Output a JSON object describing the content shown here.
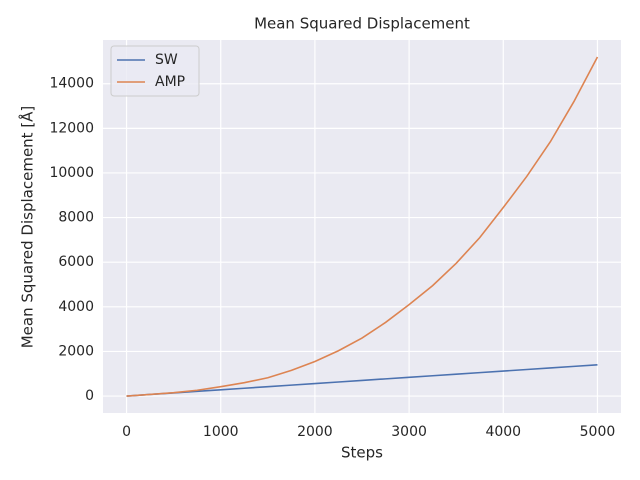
{
  "chart_data": {
    "type": "line",
    "title": "Mean Squared Displacement",
    "xlabel": "Steps",
    "ylabel": "Mean Squared Displacement [Å]",
    "x": [
      0,
      250,
      500,
      750,
      1000,
      1250,
      1500,
      1750,
      2000,
      2250,
      2500,
      2750,
      3000,
      3250,
      3500,
      3750,
      4000,
      4250,
      4500,
      4750,
      5000
    ],
    "series": [
      {
        "name": "SW",
        "color": "#4c72b0",
        "values": [
          0,
          70,
          140,
          210,
          280,
          350,
          420,
          490,
          560,
          630,
          700,
          770,
          840,
          910,
          980,
          1050,
          1120,
          1190,
          1260,
          1330,
          1400
        ]
      },
      {
        "name": "AMP",
        "color": "#dd8452",
        "values": [
          0,
          70,
          150,
          260,
          420,
          600,
          820,
          1150,
          1550,
          2030,
          2600,
          3300,
          4100,
          4950,
          5950,
          7100,
          8450,
          9850,
          11400,
          13200,
          15200
        ]
      }
    ],
    "xlim": [
      -250,
      5250
    ],
    "xticks": [
      0,
      1000,
      2000,
      3000,
      4000,
      5000
    ],
    "ylim": [
      -760,
      15960
    ],
    "yticks": [
      0,
      2000,
      4000,
      6000,
      8000,
      10000,
      12000,
      14000
    ],
    "grid": true,
    "legend": "upper left"
  }
}
